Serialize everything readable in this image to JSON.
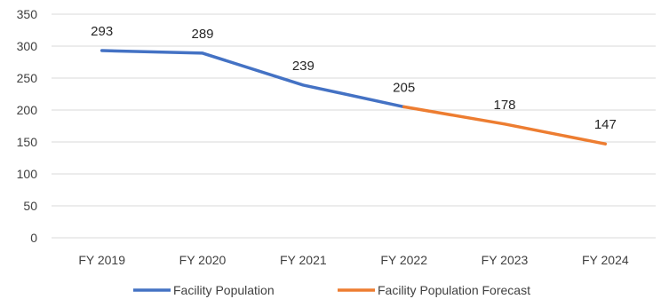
{
  "chart_data": {
    "type": "line",
    "title": "",
    "xlabel": "",
    "ylabel": "",
    "categories": [
      "FY 2019",
      "FY 2020",
      "FY 2021",
      "FY 2022",
      "FY 2023",
      "FY 2024"
    ],
    "ylim": [
      0,
      350
    ],
    "yticks": [
      0,
      50,
      100,
      150,
      200,
      250,
      300,
      350
    ],
    "grid": true,
    "legend_position": "bottom",
    "series": [
      {
        "name": "Facility Population",
        "color": "#4472c4",
        "points": [
          {
            "category": "FY 2019",
            "value": 293
          },
          {
            "category": "FY 2020",
            "value": 289
          },
          {
            "category": "FY 2021",
            "value": 239
          },
          {
            "category": "FY 2022",
            "value": 205
          }
        ]
      },
      {
        "name": "Facility Population Forecast",
        "color": "#ed7d31",
        "points": [
          {
            "category": "FY 2022",
            "value": 205
          },
          {
            "category": "FY 2023",
            "value": 178
          },
          {
            "category": "FY 2024",
            "value": 147
          }
        ]
      }
    ],
    "data_labels": [
      {
        "category": "FY 2019",
        "value": 293
      },
      {
        "category": "FY 2020",
        "value": 289
      },
      {
        "category": "FY 2021",
        "value": 239
      },
      {
        "category": "FY 2022",
        "value": 205
      },
      {
        "category": "FY 2023",
        "value": 178
      },
      {
        "category": "FY 2024",
        "value": 147
      }
    ]
  }
}
